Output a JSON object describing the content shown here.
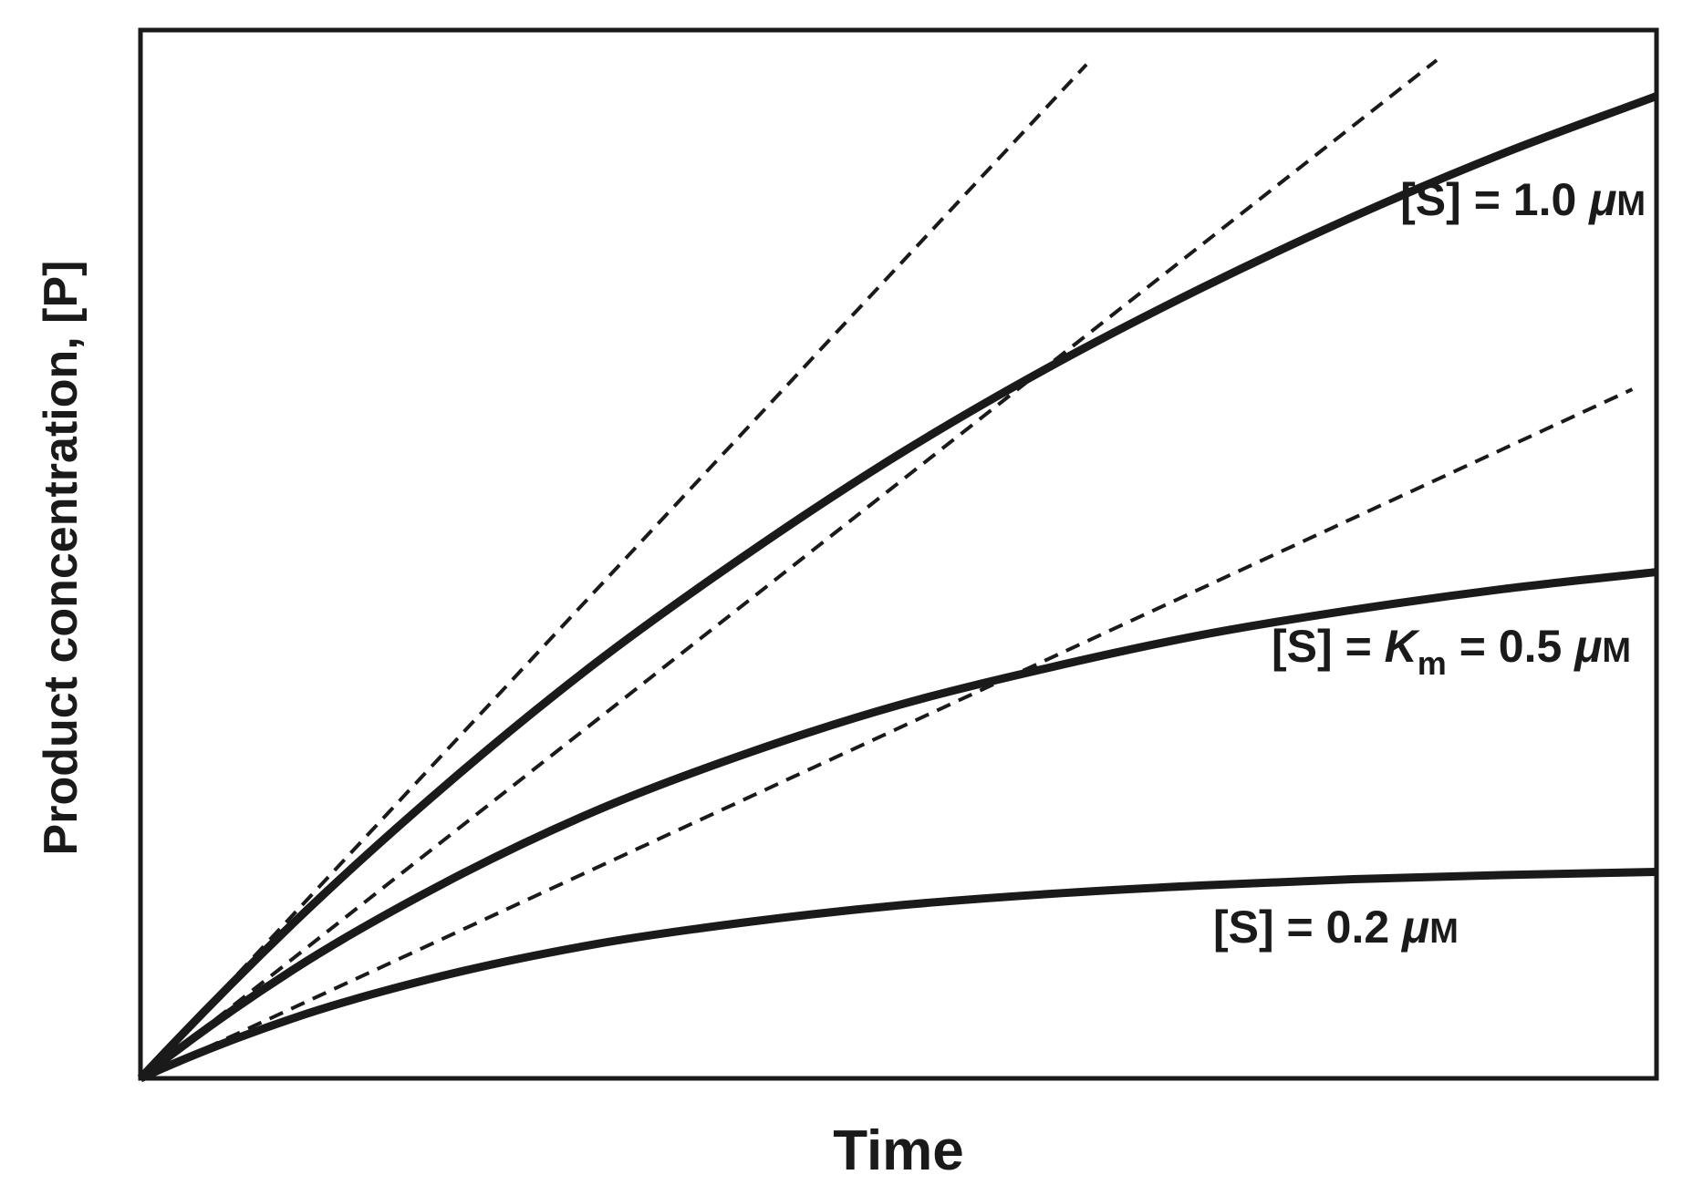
{
  "chart_data": {
    "type": "line",
    "title": "",
    "xlabel": "Time",
    "ylabel": "Product concentration, [P]",
    "xlim": [
      0,
      10
    ],
    "ylim": [
      0,
      10
    ],
    "grid": false,
    "ticks": false,
    "line_color": "#1a1a1a",
    "series": [
      {
        "name": "[S] = 1.0 μM",
        "label_parts": {
          "pre": "[S] = 1.0 ",
          "mu": "μ",
          "unit": "M"
        },
        "x": [
          0,
          1,
          2,
          3,
          4,
          5,
          6,
          7,
          8,
          9,
          10
        ],
        "y": [
          0,
          1.47,
          2.78,
          3.96,
          5.0,
          5.95,
          6.79,
          7.54,
          8.22,
          8.83,
          9.37
        ],
        "tangent": {
          "slope": 1.55,
          "x_end": 6.24
        }
      },
      {
        "name": "[S] = Km = 0.5 μM",
        "label_parts": {
          "pre": "[S] = ",
          "k": "K",
          "sub": "m",
          "post": " = 0.5 ",
          "mu": "μ",
          "unit": "M"
        },
        "x": [
          0,
          1,
          2,
          3,
          4,
          5,
          6,
          7,
          8,
          9,
          10
        ],
        "y": [
          0,
          1.03,
          1.86,
          2.55,
          3.1,
          3.56,
          3.92,
          4.23,
          4.47,
          4.67,
          4.83
        ],
        "tangent": {
          "slope": 1.136,
          "x_end": 8.55
        }
      },
      {
        "name": "[S] = 0.2 μM",
        "label_parts": {
          "pre": "[S] = 0.2 ",
          "mu": "μ",
          "unit": "M"
        },
        "x": [
          0,
          1,
          2,
          3,
          4,
          5,
          6,
          7,
          8,
          9,
          10
        ],
        "y": [
          0,
          0.57,
          0.98,
          1.28,
          1.49,
          1.65,
          1.76,
          1.84,
          1.9,
          1.94,
          1.97
        ],
        "tangent": {
          "slope": 0.668,
          "x_end": 9.84
        }
      }
    ]
  }
}
